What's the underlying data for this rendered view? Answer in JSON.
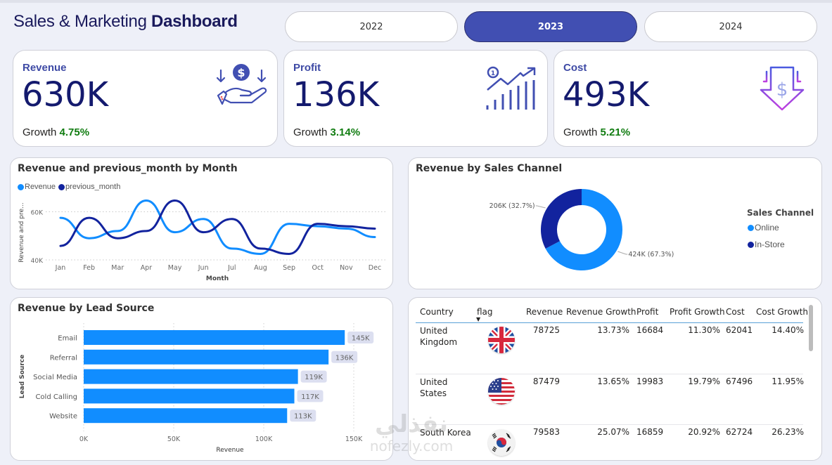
{
  "header": {
    "title_regular": "Sales & Marketing ",
    "title_bold": "Dashboard"
  },
  "year_tabs": [
    {
      "label": "2022",
      "active": false
    },
    {
      "label": "2023",
      "active": true
    },
    {
      "label": "2024",
      "active": false
    }
  ],
  "kpis": [
    {
      "label": "Revenue",
      "value": "630K",
      "growth_label": "Growth",
      "growth": "4.75%",
      "icon": "hand-receiving-money-icon"
    },
    {
      "label": "Profit",
      "value": "136K",
      "growth_label": "Growth",
      "growth": "3.14%",
      "icon": "growth-chart-icon"
    },
    {
      "label": "Cost",
      "value": "493K",
      "growth_label": "Growth",
      "growth": "5.21%",
      "icon": "cost-down-arrow-icon"
    }
  ],
  "colors": {
    "accent": "#414fb2",
    "primary_series": "#118dff",
    "secondary_series": "#12239e",
    "growth_positive": "#107c10",
    "kpi_value": "#141a6e"
  },
  "chart_data": [
    {
      "type": "line",
      "title": "Revenue and previous_month by Month",
      "xlabel": "Month",
      "ylabel": "Revenue and pre...",
      "categories": [
        "Jan",
        "Feb",
        "Mar",
        "Apr",
        "May",
        "Jun",
        "Jul",
        "Aug",
        "Sep",
        "Oct",
        "Nov",
        "Dec"
      ],
      "series": [
        {
          "name": "Revenue",
          "color": "#118dff",
          "values": [
            57500,
            49000,
            52000,
            64700,
            51500,
            57000,
            44700,
            42500,
            55000,
            54000,
            53000,
            49500
          ]
        },
        {
          "name": "previous_month",
          "color": "#12239e",
          "values": [
            45800,
            57500,
            49000,
            52000,
            64700,
            51500,
            57000,
            44700,
            42500,
            55000,
            54000,
            53000
          ]
        }
      ],
      "yticks": [
        {
          "value": 40000,
          "label": "40K"
        },
        {
          "value": 60000,
          "label": "60K"
        }
      ],
      "ylim": [
        40000,
        66000
      ],
      "grid": true,
      "legend": "top-left"
    },
    {
      "type": "pie",
      "subtype": "donut",
      "title": "Revenue by Sales Channel",
      "legend_title": "Sales Channel",
      "legend": "right",
      "slices": [
        {
          "name": "Online",
          "value": 424000,
          "label": "424K (67.3%)",
          "percent": 67.3,
          "color": "#118dff"
        },
        {
          "name": "In-Store",
          "value": 206000,
          "label": "206K (32.7%)",
          "percent": 32.7,
          "color": "#12239e"
        }
      ]
    },
    {
      "type": "bar",
      "orientation": "horizontal",
      "title": "Revenue by Lead Source",
      "xlabel": "Revenue",
      "ylabel": "Lead Source",
      "categories": [
        "Email",
        "Referral",
        "Social Media",
        "Cold Calling",
        "Website"
      ],
      "values": [
        145000,
        136000,
        119000,
        117000,
        113000
      ],
      "data_labels": [
        "145K",
        "136K",
        "119K",
        "117K",
        "113K"
      ],
      "xticks": [
        {
          "value": 0,
          "label": "0K"
        },
        {
          "value": 50000,
          "label": "50K"
        },
        {
          "value": 100000,
          "label": "100K"
        },
        {
          "value": 150000,
          "label": "150K"
        }
      ],
      "xlim": [
        0,
        150000
      ],
      "color": "#118dff",
      "grid": true
    }
  ],
  "table": {
    "columns": [
      "Country",
      "flag",
      "Revenue",
      "Revenue Growth",
      "Profit",
      "Profit Growth",
      "Cost",
      "Cost Growth"
    ],
    "sort_indicator": "▼",
    "rows": [
      {
        "country_line1": "United",
        "country_line2": "Kingdom",
        "flag": "uk-flag",
        "revenue": "78725",
        "revenue_growth": "13.73%",
        "profit": "16684",
        "profit_growth": "11.30%",
        "cost": "62041",
        "cost_growth": "14.40%"
      },
      {
        "country_line1": "United",
        "country_line2": "States",
        "flag": "us-flag",
        "revenue": "87479",
        "revenue_growth": "13.65%",
        "profit": "19983",
        "profit_growth": "19.79%",
        "cost": "67496",
        "cost_growth": "11.95%"
      },
      {
        "country_line1": "South Korea",
        "country_line2": "",
        "flag": "south-korea-flag",
        "revenue": "79583",
        "revenue_growth": "25.07%",
        "profit": "16859",
        "profit_growth": "20.92%",
        "cost": "62724",
        "cost_growth": "26.23%"
      }
    ]
  },
  "watermark": {
    "arabic": "نفذلي",
    "latin": "nofezly.com"
  }
}
